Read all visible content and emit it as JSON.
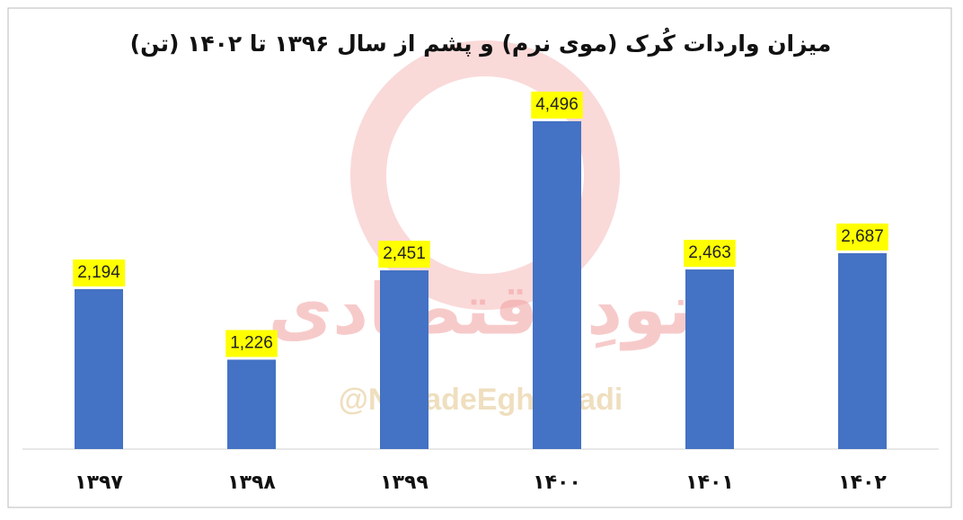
{
  "chart_data": {
    "type": "bar",
    "title": "میزان واردات کُرک (موی نرم) و پشم از سال ۱۳۹۶ تا ۱۴۰۲ (تن)",
    "categories": [
      "۱۳۹۷",
      "۱۳۹۸",
      "۱۳۹۹",
      "۱۴۰۰",
      "۱۴۰۱",
      "۱۴۰۲"
    ],
    "values": [
      2194,
      1226,
      2451,
      4496,
      2463,
      2687
    ],
    "value_labels": [
      "2,194",
      "1,226",
      "2,451",
      "4,496",
      "2,463",
      "2,687"
    ],
    "color": "#4472c4",
    "label_background": "#ffff00",
    "watermark": [
      "نودِ اقتصادی",
      "@NavadeEghtesadi"
    ]
  }
}
